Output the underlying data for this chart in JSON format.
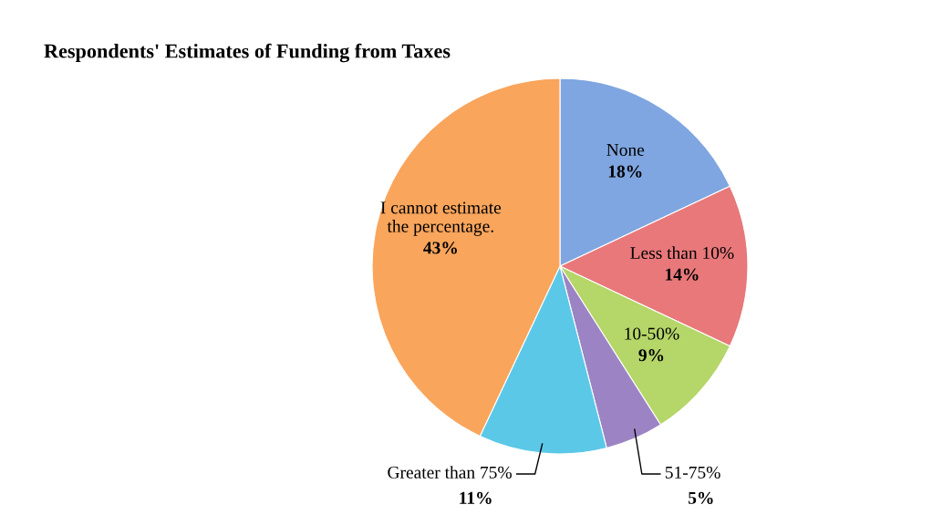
{
  "chart_data": {
    "type": "pie",
    "title": "Respondents' Estimates of Funding from Taxes",
    "categories": [
      "None",
      "Less than 10%",
      "10-50%",
      "51-75%",
      "Greater than 75%",
      "I cannot estimate\nthe percentage."
    ],
    "values": [
      18,
      14,
      9,
      5,
      11,
      43
    ],
    "value_labels": [
      "18%",
      "14%",
      "9%",
      "5%",
      "11%",
      "43%"
    ],
    "colors": [
      "#7fa6e0",
      "#e8787a",
      "#b5d668",
      "#9c84c4",
      "#5cc8e8",
      "#f9a55c"
    ],
    "legend": false
  }
}
